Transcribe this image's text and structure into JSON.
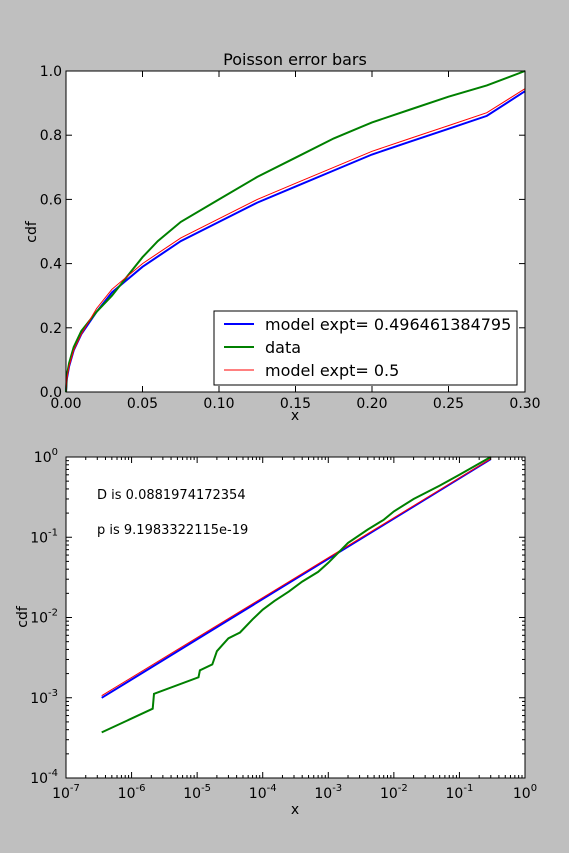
{
  "colors": {
    "figure_bg": "#bfbfbf",
    "axes_bg": "#ffffff",
    "model_fit": "#0000ff",
    "data": "#008000",
    "model_half": "#ff0000"
  },
  "chart_data": [
    {
      "type": "line",
      "title": "Poisson error bars",
      "xlabel": "x",
      "ylabel": "cdf",
      "xlim": [
        0.0,
        0.3
      ],
      "ylim": [
        0.0,
        1.0
      ],
      "x_ticks": [
        "0.00",
        "0.05",
        "0.10",
        "0.15",
        "0.20",
        "0.25",
        "0.30"
      ],
      "y_ticks": [
        "0.0",
        "0.2",
        "0.4",
        "0.6",
        "0.8",
        "1.0"
      ],
      "grid": false,
      "legend_position": "bottom-right",
      "series": [
        {
          "name": "model expt= 0.496461384795",
          "color": "#0000ff",
          "x": [
            0,
            0.0005,
            0.002,
            0.005,
            0.01,
            0.02,
            0.03,
            0.05,
            0.075,
            0.1,
            0.125,
            0.15,
            0.175,
            0.2,
            0.225,
            0.25,
            0.275,
            0.3
          ],
          "y": [
            0,
            0.04,
            0.08,
            0.13,
            0.18,
            0.25,
            0.31,
            0.39,
            0.47,
            0.53,
            0.59,
            0.64,
            0.69,
            0.74,
            0.78,
            0.82,
            0.86,
            0.937
          ]
        },
        {
          "name": "data",
          "color": "#008000",
          "x": [
            0,
            0.0005,
            0.002,
            0.005,
            0.01,
            0.02,
            0.03,
            0.04,
            0.05,
            0.06,
            0.075,
            0.1,
            0.125,
            0.15,
            0.175,
            0.2,
            0.225,
            0.25,
            0.275,
            0.3
          ],
          "y": [
            0,
            0.05,
            0.09,
            0.14,
            0.19,
            0.25,
            0.3,
            0.36,
            0.42,
            0.47,
            0.53,
            0.6,
            0.67,
            0.73,
            0.79,
            0.84,
            0.88,
            0.92,
            0.955,
            1.0
          ]
        },
        {
          "name": "model expt= 0.5",
          "color": "#ff0000",
          "x": [
            0,
            0.0005,
            0.002,
            0.005,
            0.01,
            0.02,
            0.03,
            0.05,
            0.075,
            0.1,
            0.125,
            0.15,
            0.175,
            0.2,
            0.225,
            0.25,
            0.275,
            0.3
          ],
          "y": [
            0,
            0.04,
            0.08,
            0.13,
            0.18,
            0.26,
            0.32,
            0.4,
            0.48,
            0.54,
            0.6,
            0.65,
            0.7,
            0.75,
            0.79,
            0.83,
            0.87,
            0.945
          ]
        }
      ]
    },
    {
      "type": "line",
      "xlabel": "x",
      "ylabel": "cdf",
      "xscale": "log",
      "yscale": "log",
      "xlim": [
        1e-07,
        1
      ],
      "ylim": [
        0.0001,
        1
      ],
      "x_ticks": [
        {
          "base": "10",
          "exp": "-7"
        },
        {
          "base": "10",
          "exp": "-6"
        },
        {
          "base": "10",
          "exp": "-5"
        },
        {
          "base": "10",
          "exp": "-4"
        },
        {
          "base": "10",
          "exp": "-3"
        },
        {
          "base": "10",
          "exp": "-2"
        },
        {
          "base": "10",
          "exp": "-1"
        },
        {
          "base": "10",
          "exp": "0"
        }
      ],
      "y_ticks": [
        {
          "base": "10",
          "exp": "-4"
        },
        {
          "base": "10",
          "exp": "-3"
        },
        {
          "base": "10",
          "exp": "-2"
        },
        {
          "base": "10",
          "exp": "-1"
        },
        {
          "base": "10",
          "exp": "0"
        }
      ],
      "annotations": [
        "D is  0.0881974172354",
        "p is  9.1983322115e-19"
      ],
      "grid": false,
      "series": [
        {
          "color": "#0000ff",
          "x": [
            3.5e-07,
            0.3
          ],
          "y": [
            0.001,
            0.94
          ]
        },
        {
          "color": "#ff0000",
          "x": [
            3.5e-07,
            0.3
          ],
          "y": [
            0.00106,
            0.95
          ]
        },
        {
          "color": "#008000",
          "x": [
            3.5e-07,
            2.1e-06,
            2.2e-06,
            1.05e-05,
            1.1e-05,
            1.7e-05,
            2e-05,
            2.4e-05,
            3e-05,
            4.5e-05,
            7e-05,
            0.0001,
            0.00015,
            0.00025,
            0.0004,
            0.0007,
            0.001,
            0.002,
            0.004,
            0.007,
            0.01,
            0.02,
            0.05,
            0.1,
            0.3
          ],
          "y": [
            0.00037,
            0.00073,
            0.00112,
            0.0018,
            0.0022,
            0.0026,
            0.0038,
            0.0045,
            0.0055,
            0.0065,
            0.0095,
            0.0125,
            0.016,
            0.021,
            0.028,
            0.037,
            0.048,
            0.085,
            0.125,
            0.165,
            0.21,
            0.3,
            0.44,
            0.6,
            1.0
          ]
        }
      ]
    }
  ]
}
